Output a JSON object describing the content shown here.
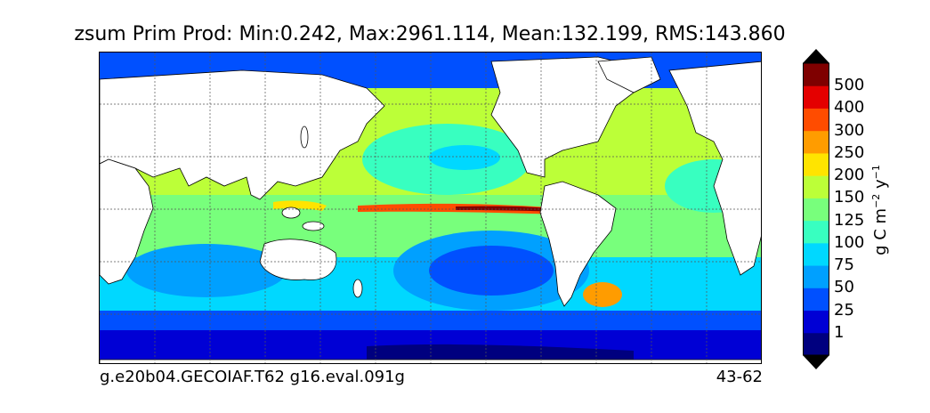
{
  "title": "zsum Prim Prod: Min:0.242, Max:2961.114, Mean:132.199, RMS:143.860",
  "caption_left": "g.e20b04.GECOIAF.T62 g16.eval.091g",
  "caption_right": "43-62",
  "colorbar": {
    "units_prefix": "g C m",
    "units_exp1": "−2",
    "units_mid": " y",
    "units_exp2": "−1",
    "levels": [
      "1",
      "25",
      "50",
      "75",
      "100",
      "125",
      "150",
      "200",
      "250",
      "300",
      "400",
      "500"
    ],
    "colors": [
      "#00007f",
      "#0000d5",
      "#0050ff",
      "#00a0ff",
      "#00d8ff",
      "#38ffc0",
      "#78ff7c",
      "#bcff38",
      "#ffe400",
      "#ff9c00",
      "#ff4c00",
      "#e40000",
      "#7f0000"
    ],
    "extend": "both"
  },
  "colors": {
    "land": "#ffffff",
    "ocean_base": "#00d8ff",
    "grid": "#555555"
  }
}
